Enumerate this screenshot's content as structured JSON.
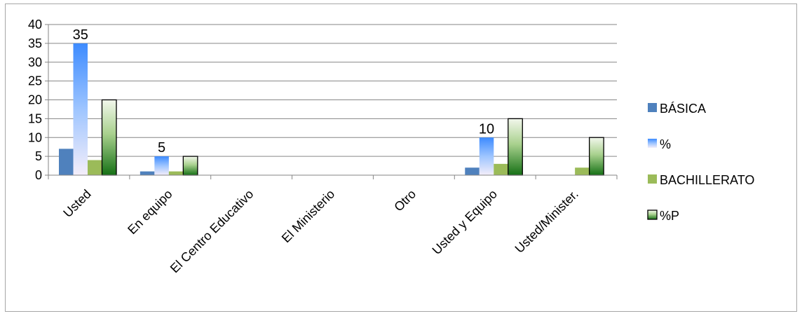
{
  "chart_data": {
    "type": "bar",
    "title": "",
    "xlabel": "",
    "ylabel": "",
    "ylim": [
      0,
      40
    ],
    "yticks": [
      0,
      5,
      10,
      15,
      20,
      25,
      30,
      35,
      40
    ],
    "grid": true,
    "legend_position": "right",
    "categories": [
      "Usted",
      "En equipo",
      "El Centro Educativo",
      "El Ministerio",
      "Otro",
      "Usted y Equipo",
      "Usted/Minister."
    ],
    "series": [
      {
        "name": "BÁSICA",
        "values": [
          7,
          1,
          0,
          0,
          0,
          2,
          0
        ],
        "color": "#4f81bd",
        "style": "solid"
      },
      {
        "name": "%",
        "values": [
          35,
          5,
          0,
          0,
          0,
          10,
          0
        ],
        "color": "#4f9cff",
        "style": "gradient-light",
        "data_labels": [
          35,
          5,
          null,
          null,
          null,
          10,
          null
        ]
      },
      {
        "name": "BACHILLERATO",
        "values": [
          4,
          1,
          0,
          0,
          0,
          3,
          2
        ],
        "color": "#9bbb59",
        "style": "solid"
      },
      {
        "name": "%P",
        "values": [
          20,
          5,
          0,
          0,
          0,
          15,
          10
        ],
        "color": "#1e7a1e",
        "style": "gradient-dark-outlined"
      }
    ]
  }
}
